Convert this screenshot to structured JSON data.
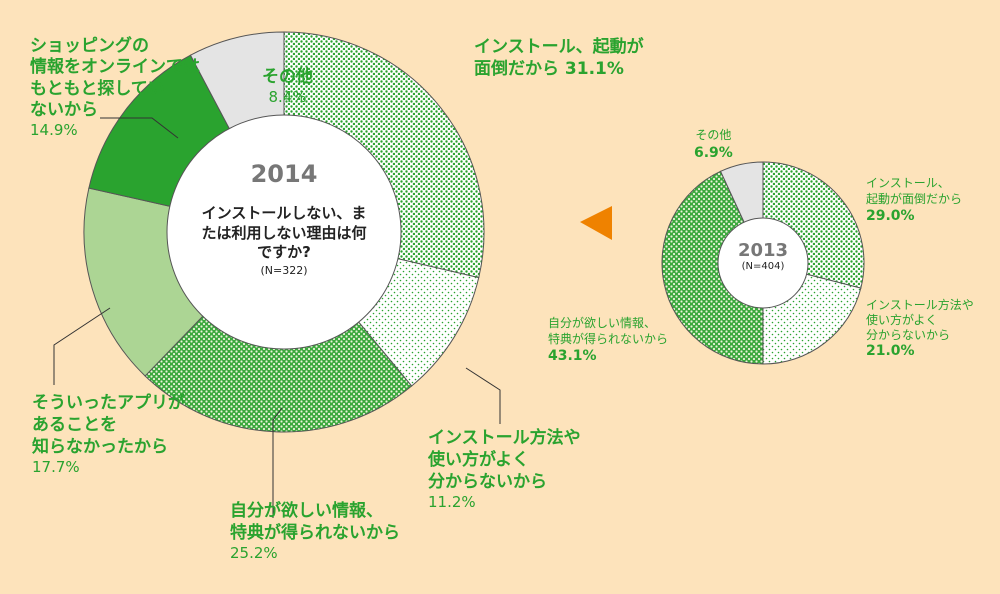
{
  "chart_data": [
    {
      "type": "pie",
      "title": "2014",
      "question": "インストールしない、または利用しない理由は何ですか?",
      "n_label": "(N=322)",
      "slices": [
        {
          "label": "インストール、起動が面倒だから",
          "value": 31.1,
          "value_label": "31.1%",
          "pattern": "dots-dense"
        },
        {
          "label": "インストール方法や使い方がよく分からないから",
          "value": 11.2,
          "value_label": "11.2%",
          "pattern": "dots-sparse"
        },
        {
          "label": "自分が欲しい情報、特典が得られないから",
          "value": 25.2,
          "value_label": "25.2%",
          "pattern": "dots-green"
        },
        {
          "label": "そういったアプリがあることを知らなかったから",
          "value": 17.7,
          "value_label": "17.7%",
          "pattern": "light-green"
        },
        {
          "label": "ショッピングの情報をオンラインではもともと探していないから",
          "value": 14.9,
          "value_label": "14.9%",
          "pattern": "green"
        },
        {
          "label": "その他",
          "value": 8.4,
          "value_label": "8.4%",
          "pattern": "gray"
        }
      ]
    },
    {
      "type": "pie",
      "title": "2013",
      "n_label": "(N=404)",
      "slices": [
        {
          "label": "インストール、起動が面倒だから",
          "value": 29.0,
          "value_label": "29.0%",
          "pattern": "dots-dense"
        },
        {
          "label": "インストール方法や使い方がよく分からないから",
          "value": 21.0,
          "value_label": "21.0%",
          "pattern": "dots-sparse"
        },
        {
          "label": "自分が欲しい情報、特典が得られないから",
          "value": 43.1,
          "value_label": "43.1%",
          "pattern": "dots-green"
        },
        {
          "label": "その他",
          "value": 6.9,
          "value_label": "6.9%",
          "pattern": "gray"
        }
      ]
    }
  ],
  "labels2014": {
    "s0": {
      "lines": [
        "インストール、起動が",
        "面倒だから 31.1%"
      ]
    },
    "s1": {
      "lines": [
        "インストール方法や",
        "使い方がよく",
        "分からないから",
        "11.2%"
      ]
    },
    "s2": {
      "lines": [
        "自分が欲しい情報、",
        "特典が得られないから",
        "25.2%"
      ]
    },
    "s3": {
      "lines": [
        "そういったアプリが",
        "あることを",
        "知らなかったから",
        "17.7%"
      ]
    },
    "s4": {
      "lines": [
        "ショッピングの",
        "情報をオンラインでは",
        "もともと探してい",
        "ないから",
        "14.9%"
      ]
    },
    "s5": {
      "lines": [
        "その他",
        "8.4%"
      ]
    }
  },
  "labels2013": {
    "s0": {
      "lines": [
        "インストール、",
        "起動が面倒だから",
        "29.0%"
      ]
    },
    "s1": {
      "lines": [
        "インストール方法や",
        "使い方がよく",
        "分からないから",
        "21.0%"
      ]
    },
    "s2": {
      "lines": [
        "自分が欲しい情報、",
        "特典が得られないから",
        "43.1%"
      ]
    },
    "s3": {
      "lines": [
        "その他",
        "6.9%"
      ]
    }
  },
  "colors": {
    "background": "#fde3bb",
    "green": "#2aa32f",
    "light_green": "#acd594",
    "gray": "#e4e4e4",
    "arrow": "#ef8200"
  }
}
